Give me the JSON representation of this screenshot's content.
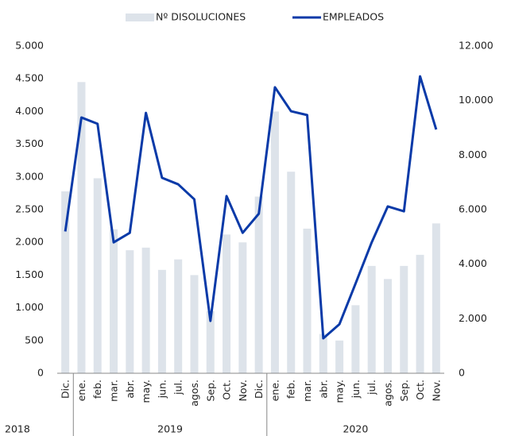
{
  "chart_data": {
    "type": "bar_line",
    "category_groups": [
      {
        "label": "2018",
        "categories": [
          "Dic."
        ]
      },
      {
        "label": "2019",
        "categories": [
          "ene.",
          "feb.",
          "mar.",
          "abr.",
          "may.",
          "jun.",
          "jul.",
          "agos.",
          "Sep.",
          "Oct.",
          "Nov.",
          "Dic."
        ]
      },
      {
        "label": "2020",
        "categories": [
          "ene.",
          "feb.",
          "mar.",
          "abr.",
          "may.",
          "jun.",
          "jul.",
          "agos.",
          "Sep.",
          "Oct.",
          "Nov."
        ]
      }
    ],
    "series": [
      {
        "name": "Nº DISOLUCIONES",
        "type": "bar",
        "color": "#dde3ea",
        "axis": "y",
        "values": [
          2780,
          4450,
          2980,
          2200,
          1880,
          1920,
          1580,
          1740,
          1500,
          950,
          2120,
          2000,
          2700,
          4000,
          3080,
          2210,
          600,
          500,
          1040,
          1640,
          1440,
          1640,
          1810,
          2290
        ]
      },
      {
        "name": "EMPLEADOS",
        "type": "line",
        "color": "#0a3aa8",
        "axis": "y2",
        "values": [
          5200,
          9380,
          9150,
          4800,
          5150,
          9550,
          7170,
          6930,
          6380,
          1920,
          6500,
          5150,
          5850,
          10490,
          9610,
          9470,
          1280,
          1800,
          3290,
          4800,
          6120,
          5940,
          10890,
          8940
        ]
      }
    ],
    "ylim": [
      0,
      5000
    ],
    "yticks": [
      0,
      500,
      {
        "value": 1000,
        "label": "1.000"
      },
      {
        "value": 1500,
        "label": "1.500"
      },
      {
        "value": 2000,
        "label": "2.000"
      },
      {
        "value": 2500,
        "label": "2.500"
      },
      {
        "value": 3000,
        "label": "3.000"
      },
      {
        "value": 3500,
        "label": "3.500"
      },
      {
        "value": 4000,
        "label": "4.000"
      },
      {
        "value": 4500,
        "label": "4.500"
      },
      {
        "value": 5000,
        "label": "5.000"
      }
    ],
    "y2lim": [
      0,
      12000
    ],
    "y2ticks": [
      0,
      {
        "value": 2000,
        "label": "2.000"
      },
      {
        "value": 4000,
        "label": "4.000"
      },
      {
        "value": 6000,
        "label": "6.000"
      },
      {
        "value": 8000,
        "label": "8.000"
      },
      {
        "value": 10000,
        "label": "10.000"
      },
      {
        "value": 12000,
        "label": "12.000"
      }
    ],
    "grid": false
  }
}
